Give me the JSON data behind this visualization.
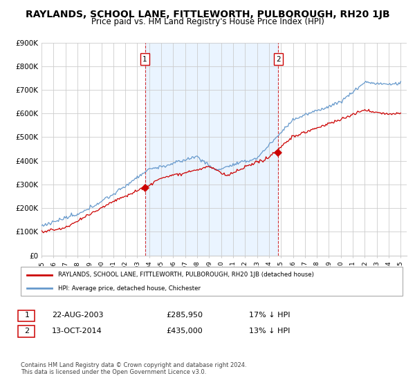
{
  "title": "RAYLANDS, SCHOOL LANE, FITTLEWORTH, PULBOROUGH, RH20 1JB",
  "subtitle": "Price paid vs. HM Land Registry's House Price Index (HPI)",
  "ylabel_ticks": [
    "£0",
    "£100K",
    "£200K",
    "£300K",
    "£400K",
    "£500K",
    "£600K",
    "£700K",
    "£800K",
    "£900K"
  ],
  "ylim": [
    0,
    900000
  ],
  "xlim_start": 1995.0,
  "xlim_end": 2025.5,
  "sale1_x": 2003.64,
  "sale1_y": 285950,
  "sale1_label": "1",
  "sale1_date": "22-AUG-2003",
  "sale1_price": "£285,950",
  "sale1_hpi": "17% ↓ HPI",
  "sale2_x": 2014.78,
  "sale2_y": 435000,
  "sale2_label": "2",
  "sale2_date": "13-OCT-2014",
  "sale2_price": "£435,000",
  "sale2_hpi": "13% ↓ HPI",
  "red_line_color": "#cc0000",
  "blue_line_color": "#6699cc",
  "fill_color": "#ddeeff",
  "legend_label_red": "RAYLANDS, SCHOOL LANE, FITTLEWORTH, PULBOROUGH, RH20 1JB (detached house)",
  "legend_label_blue": "HPI: Average price, detached house, Chichester",
  "footnote": "Contains HM Land Registry data © Crown copyright and database right 2024.\nThis data is licensed under the Open Government Licence v3.0.",
  "background_color": "#ffffff",
  "grid_color": "#cccccc",
  "title_fontsize": 10,
  "subtitle_fontsize": 8.5,
  "tick_years": [
    1995,
    1996,
    1997,
    1998,
    1999,
    2000,
    2001,
    2002,
    2003,
    2004,
    2005,
    2006,
    2007,
    2008,
    2009,
    2010,
    2011,
    2012,
    2013,
    2014,
    2015,
    2016,
    2017,
    2018,
    2019,
    2020,
    2021,
    2022,
    2023,
    2024,
    2025
  ]
}
